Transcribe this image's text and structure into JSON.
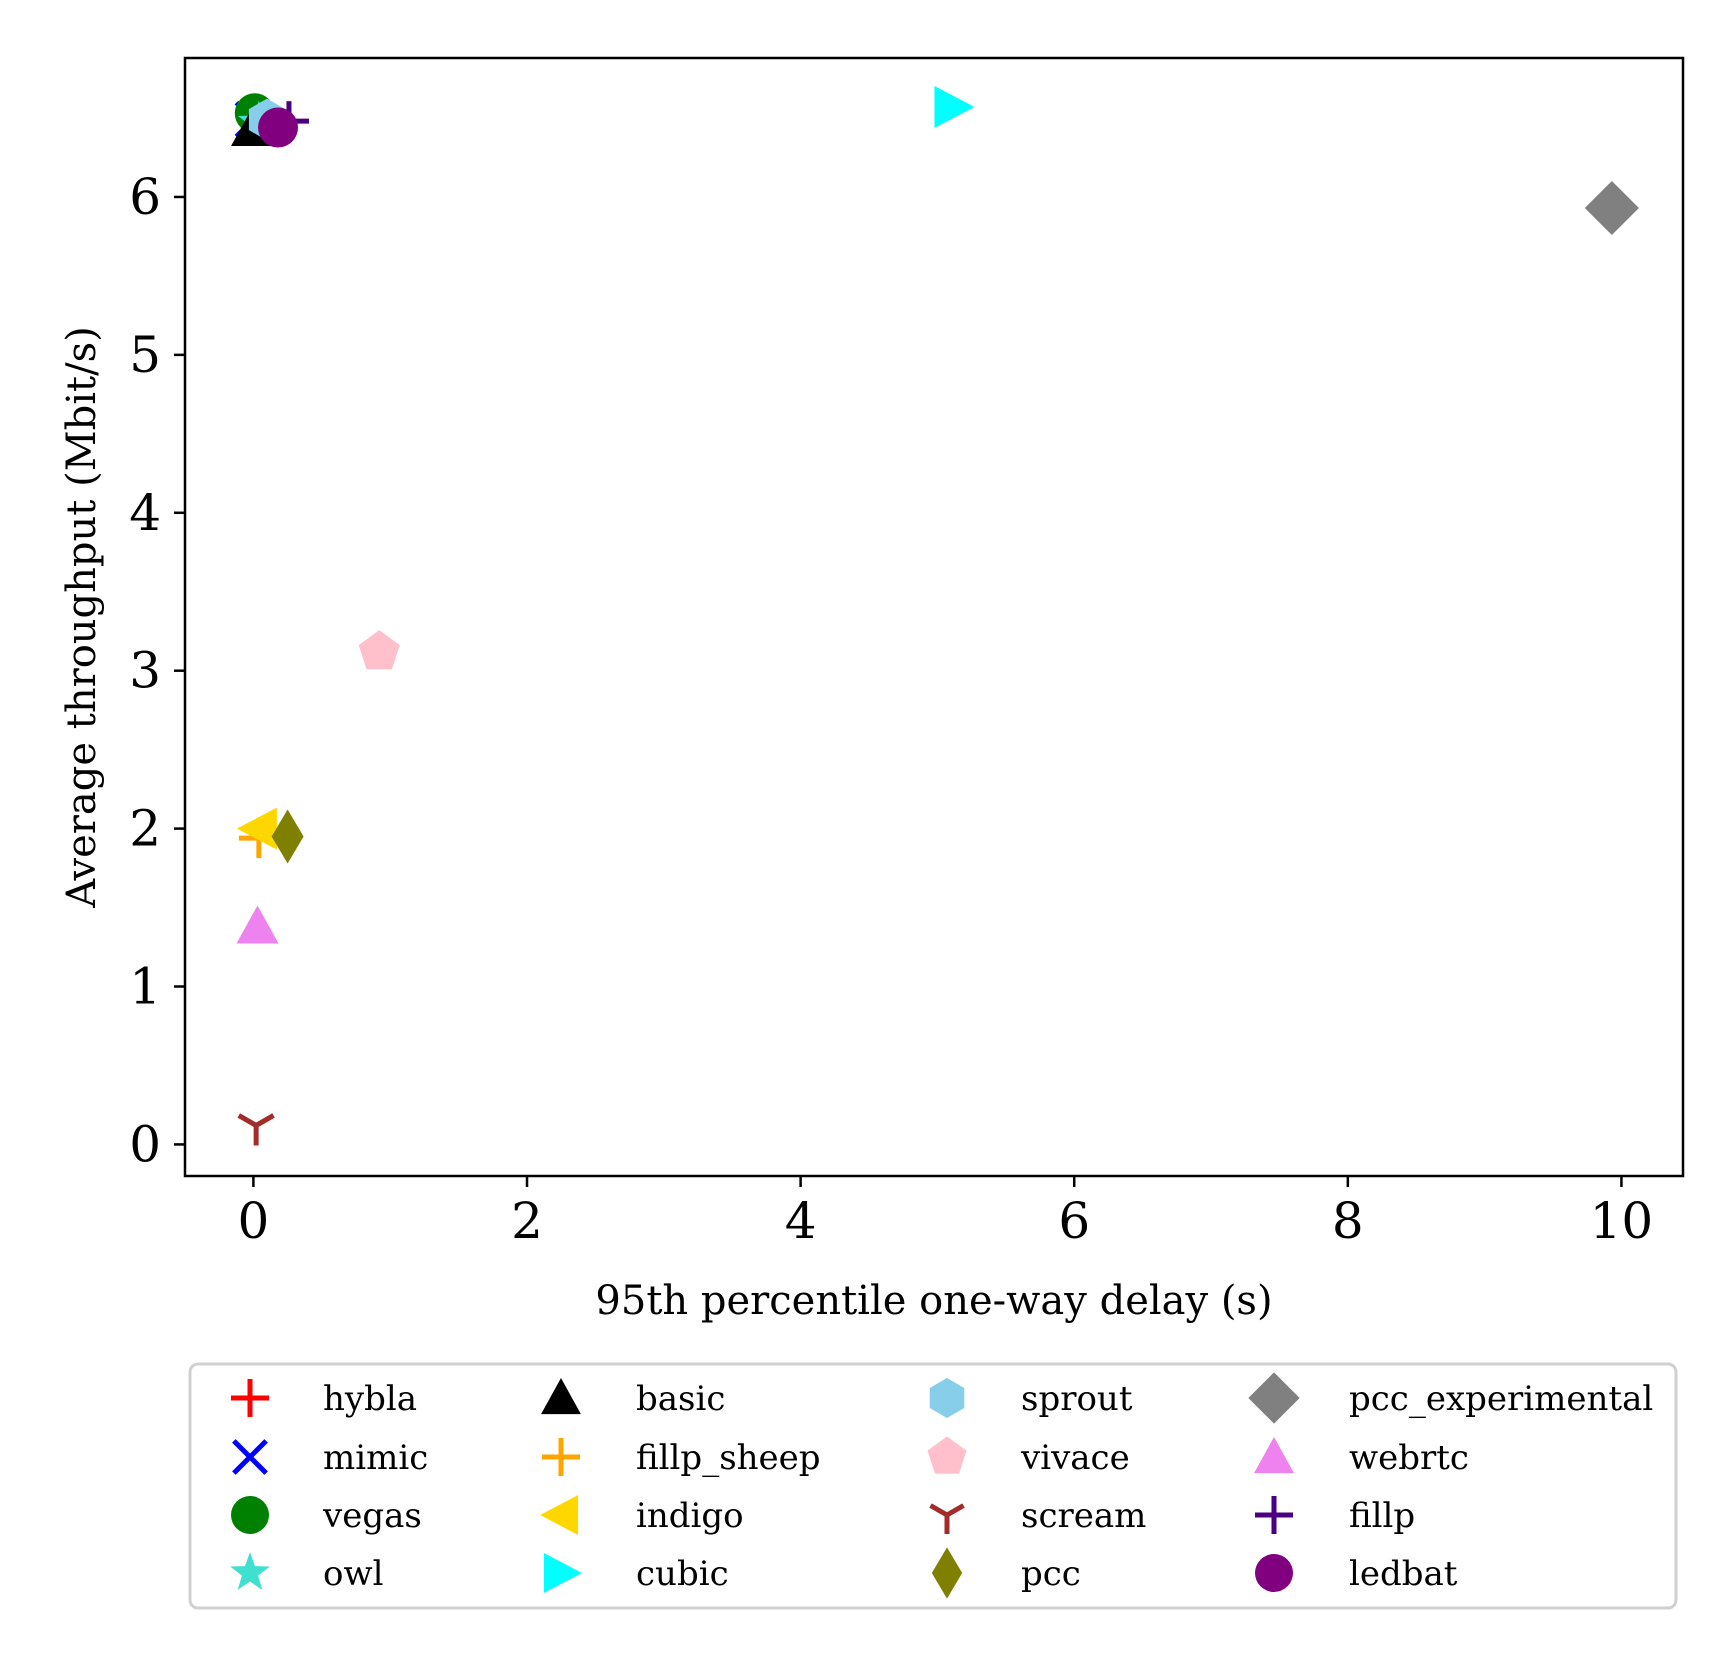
{
  "chart_data": {
    "type": "scatter",
    "title": "",
    "xlabel": "95th percentile one-way delay (s)",
    "ylabel": "Average throughput (Mbit/s)",
    "xlim": [
      -0.5,
      10.45
    ],
    "ylim": [
      -0.2,
      6.88
    ],
    "xticks": [
      0,
      2,
      4,
      6,
      8,
      10
    ],
    "yticks": [
      0,
      1,
      2,
      3,
      4,
      5,
      6
    ],
    "grid": false,
    "legend_position": "bottom",
    "legend_columns": 4,
    "series": [
      {
        "name": "hybla",
        "marker": "plus",
        "color": "#ff0000",
        "x": 0.02,
        "y": 6.5
      },
      {
        "name": "mimic",
        "marker": "x",
        "color": "#0000ff",
        "x": 0.0,
        "y": 6.49
      },
      {
        "name": "vegas",
        "marker": "circle",
        "color": "#008000",
        "x": 0.01,
        "y": 6.53
      },
      {
        "name": "owl",
        "marker": "star",
        "color": "#40e0d0",
        "x": 0.04,
        "y": 6.47
      },
      {
        "name": "basic",
        "marker": "triangle-up",
        "color": "#000000",
        "x": -0.01,
        "y": 6.43
      },
      {
        "name": "fillp_sheep",
        "marker": "plus",
        "color": "#ffa500",
        "x": 0.04,
        "y": 1.94
      },
      {
        "name": "indigo",
        "marker": "triangle-left",
        "color": "#ffd700",
        "x": 0.04,
        "y": 2.0
      },
      {
        "name": "cubic",
        "marker": "triangle-right",
        "color": "#00ffff",
        "x": 5.11,
        "y": 6.57
      },
      {
        "name": "sprout",
        "marker": "hexagon",
        "color": "#87ceeb",
        "x": 0.1,
        "y": 6.49
      },
      {
        "name": "vivace",
        "marker": "pentagon",
        "color": "#ffc0cb",
        "x": 0.92,
        "y": 3.12
      },
      {
        "name": "scream",
        "marker": "tri-down",
        "color": "#a52a2a",
        "x": 0.02,
        "y": 0.12
      },
      {
        "name": "pcc",
        "marker": "thin-diamond",
        "color": "#808000",
        "x": 0.25,
        "y": 1.95
      },
      {
        "name": "pcc_experimental",
        "marker": "diamond",
        "color": "#808080",
        "x": 9.93,
        "y": 5.93
      },
      {
        "name": "webrtc",
        "marker": "triangle-up",
        "color": "#ee82ee",
        "x": 0.03,
        "y": 1.38
      },
      {
        "name": "fillp",
        "marker": "plus",
        "color": "#4b0082",
        "x": 0.26,
        "y": 6.48
      },
      {
        "name": "ledbat",
        "marker": "circle",
        "color": "#800080",
        "x": 0.18,
        "y": 6.44
      }
    ]
  }
}
